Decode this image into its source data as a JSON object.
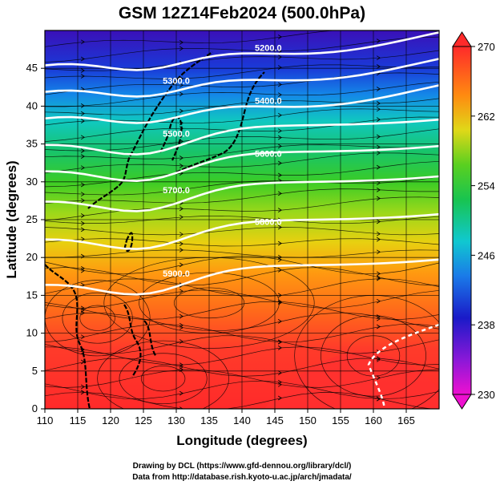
{
  "title": "GSM 12Z14Feb2024 (500.0hPa)",
  "xlabel": "Longitude (degrees)",
  "ylabel": "Latitude  (degrees)",
  "credits": [
    "Drawing by DCL (https://www.gfd-dennou.org/library/dcl/)",
    "Data from http://database.rish.kyoto-u.ac.jp/arch/jmadata/"
  ],
  "map": {
    "lon_range": [
      110,
      170
    ],
    "lat_range": [
      0,
      50
    ],
    "x_ticks": [
      "110",
      "115",
      "120",
      "125",
      "130",
      "135",
      "140",
      "145",
      "150",
      "155",
      "160",
      "165"
    ],
    "y_ticks": [
      "0",
      "5",
      "10",
      "15",
      "20",
      "25",
      "30",
      "35",
      "40",
      "45"
    ],
    "grid": true,
    "temperature_colorbar": {
      "min": 230,
      "max": 270,
      "tick_labels": [
        "270",
        "262",
        "254",
        "246",
        "238",
        "230"
      ]
    },
    "height_contours": [
      {
        "label": "5200.0",
        "lat_at_140": 47.5
      },
      {
        "label": "5300.0",
        "lat_at_140": 44.0
      },
      {
        "label": "5400.0",
        "lat_at_140": 40.5
      },
      {
        "label": "5500.0",
        "lat_at_140": 37.0
      },
      {
        "label": "5600.0",
        "lat_at_140": 33.5
      },
      {
        "label": "5700.0",
        "lat_at_140": 29.5
      },
      {
        "label": "5800.0",
        "lat_at_140": 24.5
      },
      {
        "label": "5900.0",
        "lat_at_140": 18.5
      }
    ]
  }
}
